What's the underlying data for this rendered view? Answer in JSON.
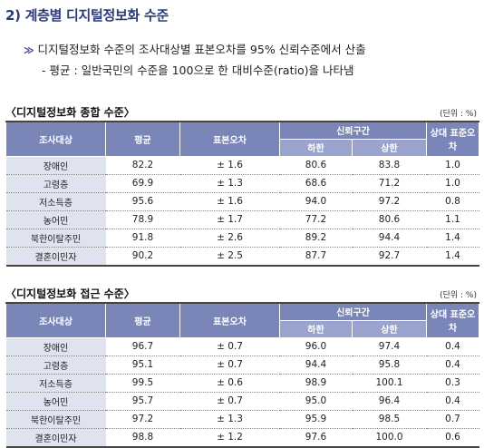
{
  "section_title": "2) 계층별 디지털정보화 수준",
  "bullet_mark": "≫",
  "bullet_text": "디지털정보화 수준의 조사대상별 표본오차를 95% 신뢰수준에서 산출",
  "sub_text": "- 평균 : 일반국민의 수준을 100으로 한 대비수준(ratio)을 나타냄",
  "tables": [
    {
      "caption": "〈디지털정보화 종합 수준〉",
      "unit": "(단위 : %)",
      "headers": {
        "group": "조사대상",
        "mean": "평균",
        "stderr": "표본오차",
        "ci": "신뢰구간",
        "lower": "하한",
        "upper": "상한",
        "rel": "상대 표준오차"
      },
      "rows": [
        {
          "label": "장애인",
          "mean": "82.2",
          "stderr": "± 1.6",
          "lower": "80.6",
          "upper": "83.8",
          "rel": "1.0"
        },
        {
          "label": "고령층",
          "mean": "69.9",
          "stderr": "± 1.3",
          "lower": "68.6",
          "upper": "71.2",
          "rel": "1.0"
        },
        {
          "label": "저소득층",
          "mean": "95.6",
          "stderr": "± 1.6",
          "lower": "94.0",
          "upper": "97.2",
          "rel": "0.8"
        },
        {
          "label": "농어민",
          "mean": "78.9",
          "stderr": "± 1.7",
          "lower": "77.2",
          "upper": "80.6",
          "rel": "1.1"
        },
        {
          "label": "북한이탈주민",
          "mean": "91.8",
          "stderr": "± 2.6",
          "lower": "89.2",
          "upper": "94.4",
          "rel": "1.4"
        },
        {
          "label": "결혼이민자",
          "mean": "90.2",
          "stderr": "± 2.5",
          "lower": "87.7",
          "upper": "92.7",
          "rel": "1.4"
        }
      ]
    },
    {
      "caption": "〈디지털정보화 접근 수준〉",
      "unit": "(단위 : %)",
      "headers": {
        "group": "조사대상",
        "mean": "평균",
        "stderr": "표본오차",
        "ci": "신뢰구간",
        "lower": "하한",
        "upper": "상한",
        "rel": "상대 표준오차"
      },
      "rows": [
        {
          "label": "장애인",
          "mean": "96.7",
          "stderr": "± 0.7",
          "lower": "96.0",
          "upper": "97.4",
          "rel": "0.4"
        },
        {
          "label": "고령층",
          "mean": "95.1",
          "stderr": "± 0.7",
          "lower": "94.4",
          "upper": "95.8",
          "rel": "0.4"
        },
        {
          "label": "저소득층",
          "mean": "99.5",
          "stderr": "± 0.6",
          "lower": "98.9",
          "upper": "100.1",
          "rel": "0.3"
        },
        {
          "label": "농어민",
          "mean": "95.7",
          "stderr": "± 0.7",
          "lower": "95.0",
          "upper": "96.4",
          "rel": "0.4"
        },
        {
          "label": "북한이탈주민",
          "mean": "97.2",
          "stderr": "± 1.3",
          "lower": "95.9",
          "upper": "98.5",
          "rel": "0.7"
        },
        {
          "label": "결혼이민자",
          "mean": "98.8",
          "stderr": "± 1.2",
          "lower": "97.6",
          "upper": "100.0",
          "rel": "0.6"
        }
      ]
    }
  ]
}
